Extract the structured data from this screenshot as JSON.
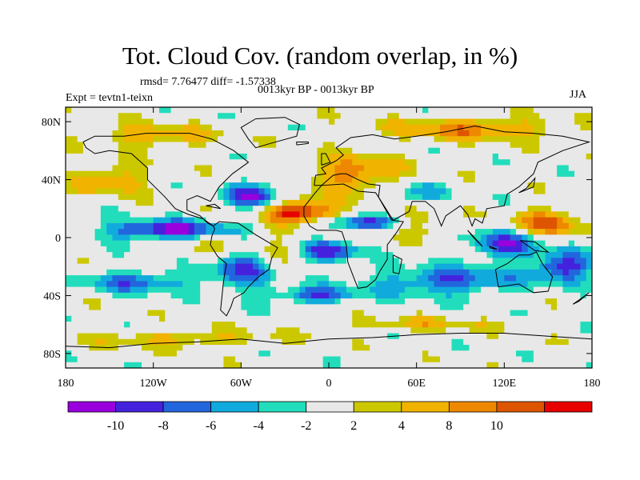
{
  "title": "Tot. Cloud Cov. (random overlap, in %)",
  "stats": "rmsd= 7.76477 diff= -1.57338",
  "period": "0013kyr BP - 0013kyr BP",
  "experiment": "Expt = tevtn1-teixn",
  "season": "JJA",
  "map": {
    "lon_range": [
      -180,
      180
    ],
    "lat_range": [
      -90,
      90
    ],
    "lat_ticks": [
      {
        "label": "80N",
        "value": 80
      },
      {
        "label": "40N",
        "value": 40
      },
      {
        "label": "0",
        "value": 0
      },
      {
        "label": "40S",
        "value": -40
      },
      {
        "label": "80S",
        "value": -80
      }
    ],
    "lon_ticks": [
      {
        "label": "180",
        "value": -180
      },
      {
        "label": "120W",
        "value": -120
      },
      {
        "label": "60W",
        "value": -60
      },
      {
        "label": "0",
        "value": 0
      },
      {
        "label": "60E",
        "value": 60
      },
      {
        "label": "120E",
        "value": 120
      },
      {
        "label": "180",
        "value": 180
      }
    ]
  },
  "colorbar": {
    "colors": [
      "#9900dd",
      "#4422dd",
      "#2266dd",
      "#11aadd",
      "#22ddbb",
      "#e8e8e8",
      "#ccc800",
      "#f0b400",
      "#ee8800",
      "#dd5500",
      "#e60000"
    ],
    "labels": [
      "-10",
      "-8",
      "-6",
      "-4",
      "-2",
      "2",
      "4",
      "8",
      "10"
    ]
  }
}
